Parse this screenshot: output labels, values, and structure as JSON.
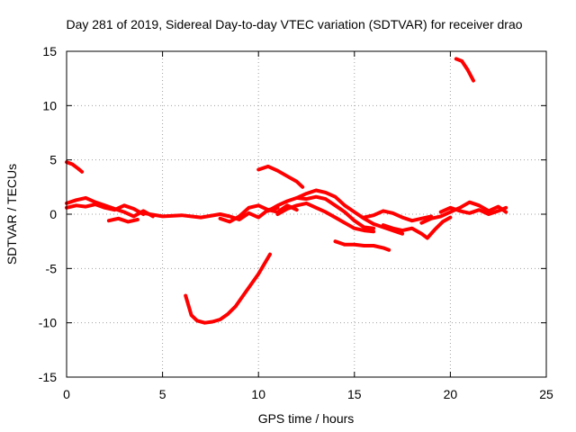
{
  "chart_data": {
    "type": "line",
    "title": "Day 281 of 2019, Sidereal Day-to-day VTEC variation (SDTVAR) for receiver drao",
    "xlabel": "GPS time / hours",
    "ylabel": "SDTVAR / TECUs",
    "xlim": [
      0,
      25
    ],
    "ylim": [
      -15,
      15
    ],
    "xticks": [
      0,
      5,
      10,
      15,
      20,
      25
    ],
    "yticks": [
      -15,
      -10,
      -5,
      0,
      5,
      10,
      15
    ],
    "xtick_labels": [
      "0",
      "5",
      "10",
      "15",
      "20",
      "25"
    ],
    "ytick_labels": [
      "-15",
      "-10",
      "-5",
      "0",
      "5",
      "10",
      "15"
    ],
    "grid": true,
    "color": "#ff0000",
    "series": [
      {
        "name": "arc1",
        "x": [
          0.0,
          0.5,
          1.0,
          1.5,
          2.0,
          2.5,
          3.0,
          3.5,
          4.0,
          4.5
        ],
        "y": [
          1.0,
          1.3,
          1.5,
          1.1,
          0.8,
          0.5,
          0.2,
          -0.2,
          0.3,
          -0.2
        ]
      },
      {
        "name": "arc2",
        "x": [
          0.0,
          0.5,
          1.0,
          1.5,
          2.0,
          2.5,
          3.0,
          3.5,
          4.0
        ],
        "y": [
          0.6,
          0.8,
          0.7,
          0.9,
          0.6,
          0.4,
          0.8,
          0.5,
          0.0
        ]
      },
      {
        "name": "arc3",
        "x": [
          2.2,
          2.7,
          3.2,
          3.7
        ],
        "y": [
          -0.6,
          -0.4,
          -0.7,
          -0.5
        ]
      },
      {
        "name": "arc4",
        "x": [
          0.0,
          0.3,
          0.6,
          0.8
        ],
        "y": [
          4.8,
          4.6,
          4.2,
          3.9
        ]
      },
      {
        "name": "arc5",
        "x": [
          4.0,
          5.0,
          6.0,
          7.0,
          8.0,
          8.5,
          9.0,
          9.5,
          10.0,
          10.5,
          11.0,
          11.5,
          12.0
        ],
        "y": [
          0.1,
          -0.2,
          -0.1,
          -0.3,
          0.0,
          -0.2,
          -0.5,
          0.1,
          -0.3,
          0.4,
          0.2,
          0.8,
          0.4
        ]
      },
      {
        "name": "arc6",
        "x": [
          8.0,
          8.5,
          9.0,
          9.5,
          10.0,
          10.5,
          11.0
        ],
        "y": [
          -0.4,
          -0.7,
          -0.2,
          0.6,
          0.8,
          0.4,
          0.6
        ]
      },
      {
        "name": "arc7",
        "x": [
          6.2,
          6.5,
          6.8,
          7.2,
          7.6,
          8.0,
          8.4,
          8.8,
          9.2,
          9.6,
          10.0,
          10.4,
          10.6
        ],
        "y": [
          -7.5,
          -9.3,
          -9.8,
          -10.0,
          -9.9,
          -9.7,
          -9.2,
          -8.5,
          -7.5,
          -6.5,
          -5.5,
          -4.3,
          -3.7
        ]
      },
      {
        "name": "arc8",
        "x": [
          10.0,
          10.5,
          11.0,
          11.5,
          12.0,
          12.3
        ],
        "y": [
          4.1,
          4.4,
          4.0,
          3.5,
          3.0,
          2.5
        ]
      },
      {
        "name": "arc9",
        "x": [
          10.5,
          11.0,
          11.5,
          12.0,
          12.5,
          13.0,
          13.5,
          14.0,
          14.5,
          15.0,
          15.5,
          16.0
        ],
        "y": [
          0.3,
          0.8,
          1.2,
          1.5,
          1.4,
          1.6,
          1.4,
          0.8,
          0.2,
          -0.6,
          -1.2,
          -1.3
        ]
      },
      {
        "name": "arc10",
        "x": [
          11.0,
          11.5,
          12.0,
          12.5,
          13.0,
          13.5,
          14.0,
          14.5,
          15.0,
          15.5,
          16.0
        ],
        "y": [
          0.0,
          0.5,
          0.8,
          1.0,
          0.6,
          0.2,
          -0.3,
          -0.8,
          -1.3,
          -1.5,
          -1.6
        ]
      },
      {
        "name": "arc11",
        "x": [
          12.0,
          12.5,
          13.0,
          13.5,
          14.0,
          14.5,
          15.0,
          15.5,
          16.0,
          16.5,
          17.0,
          17.5
        ],
        "y": [
          1.5,
          1.9,
          2.2,
          2.0,
          1.6,
          0.8,
          0.2,
          -0.4,
          -0.9,
          -1.2,
          -1.5,
          -1.8
        ]
      },
      {
        "name": "arc12",
        "x": [
          14.0,
          14.5,
          15.0,
          15.5,
          16.0,
          16.5,
          16.8
        ],
        "y": [
          -2.5,
          -2.8,
          -2.8,
          -2.9,
          -2.9,
          -3.1,
          -3.3
        ]
      },
      {
        "name": "arc13",
        "x": [
          15.5,
          16.0,
          16.5,
          17.0,
          17.5,
          18.0,
          18.5,
          19.0
        ],
        "y": [
          -0.3,
          -0.1,
          0.3,
          0.1,
          -0.3,
          -0.6,
          -0.4,
          -0.2
        ]
      },
      {
        "name": "arc14",
        "x": [
          16.5,
          17.0,
          17.5,
          18.0,
          18.5,
          18.8,
          19.2,
          19.6,
          20.0
        ],
        "y": [
          -1.0,
          -1.3,
          -1.5,
          -1.3,
          -1.8,
          -2.2,
          -1.4,
          -0.7,
          -0.3
        ]
      },
      {
        "name": "arc15",
        "x": [
          18.5,
          19.0,
          19.5,
          20.0,
          20.5,
          21.0,
          21.5,
          22.0,
          22.5,
          22.9
        ],
        "y": [
          -0.8,
          -0.4,
          -0.2,
          0.2,
          0.6,
          1.1,
          0.8,
          0.3,
          0.7,
          0.2
        ]
      },
      {
        "name": "arc16",
        "x": [
          19.5,
          20.0,
          20.5,
          21.0,
          21.5,
          22.0,
          22.5,
          22.9
        ],
        "y": [
          0.2,
          0.6,
          0.3,
          0.1,
          0.4,
          0.0,
          0.3,
          0.6
        ]
      },
      {
        "name": "arc17",
        "x": [
          20.3,
          20.6,
          20.9,
          21.2
        ],
        "y": [
          14.3,
          14.1,
          13.3,
          12.3
        ]
      }
    ]
  }
}
